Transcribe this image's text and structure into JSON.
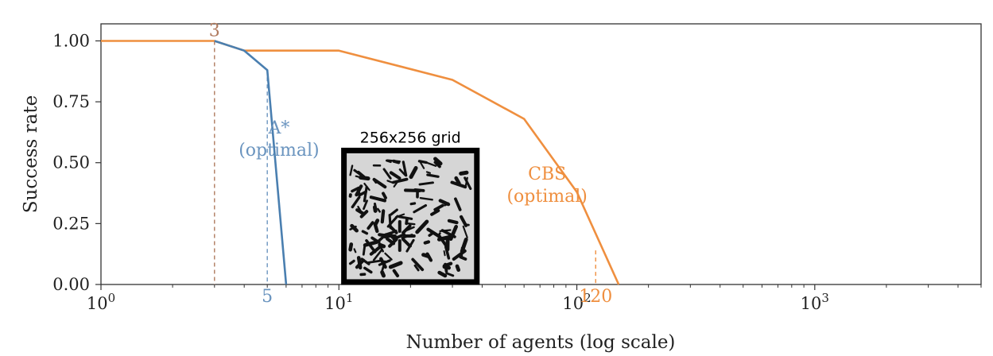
{
  "chart_data": {
    "type": "line",
    "xlabel": "Number of agents (log scale)",
    "ylabel": "Success rate",
    "xscale": "log",
    "xlim": [
      1,
      5000
    ],
    "ylim": [
      0,
      1.07
    ],
    "grid": false,
    "x_ticks": [
      {
        "value": 1,
        "base": "10",
        "exp": "0"
      },
      {
        "value": 10,
        "base": "10",
        "exp": "1"
      },
      {
        "value": 100,
        "base": "10",
        "exp": "2"
      },
      {
        "value": 1000,
        "base": "10",
        "exp": "3"
      }
    ],
    "y_ticks": [
      {
        "value": 0,
        "label": "0.00"
      },
      {
        "value": 0.25,
        "label": "0.25"
      },
      {
        "value": 0.5,
        "label": "0.50"
      },
      {
        "value": 0.75,
        "label": "0.75"
      },
      {
        "value": 1.0,
        "label": "1.00"
      }
    ],
    "series": [
      {
        "key": "cbs",
        "color": "#ef8f3f",
        "x": [
          1,
          3,
          4,
          10,
          30,
          60,
          100,
          150
        ],
        "y": [
          1.0,
          1.0,
          0.96,
          0.96,
          0.84,
          0.68,
          0.38,
          0.0
        ]
      },
      {
        "key": "astar",
        "color": "#4a7fb0",
        "x": [
          3,
          4,
          5,
          6
        ],
        "y": [
          1.0,
          0.96,
          0.88,
          0.0
        ]
      }
    ],
    "annotations": [
      {
        "key": "cbs-label",
        "lines": [
          "CBS",
          "(optimal)"
        ],
        "x": 75,
        "y": 0.43,
        "color": "#ef8f3f"
      },
      {
        "key": "astar-label",
        "lines": [
          "A*",
          "(optimal)"
        ],
        "x": 5.6,
        "y": 0.62,
        "color": "#6a94bf"
      }
    ],
    "markers": [
      {
        "key": "marker-3",
        "label": "3",
        "x": 3,
        "y_top": 1.0,
        "label_pos": "top",
        "color": "#b07a5e"
      },
      {
        "key": "marker-5",
        "label": "5",
        "x": 5,
        "y_top": 0.88,
        "label_pos": "bottom",
        "color": "#6a94bf"
      },
      {
        "key": "marker-120",
        "label": "120",
        "x": 120,
        "y_top": 0.14,
        "label_pos": "bottom",
        "color": "#ef8f3f"
      }
    ],
    "inset": {
      "title": "256x256 grid",
      "x_range": [
        10.5,
        38
      ],
      "y_range": [
        0.01,
        0.55
      ]
    }
  }
}
